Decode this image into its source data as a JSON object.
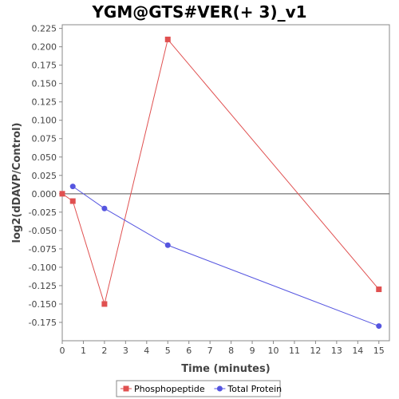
{
  "chart_data": {
    "type": "line",
    "title": "YGM@GTS#VER(+ 3)_v1",
    "xlabel": "Time (minutes)",
    "ylabel": "log2(dDAVP/Control)",
    "xlim": [
      0,
      15.5
    ],
    "ylim": [
      -0.2,
      0.23
    ],
    "x_ticks": [
      0,
      1,
      2,
      3,
      4,
      5,
      6,
      7,
      8,
      9,
      10,
      11,
      12,
      13,
      14,
      15
    ],
    "y_ticks": [
      -0.175,
      -0.15,
      -0.125,
      -0.1,
      -0.075,
      -0.05,
      -0.025,
      0.0,
      0.025,
      0.05,
      0.075,
      0.1,
      0.125,
      0.15,
      0.175,
      0.2,
      0.225
    ],
    "zero_line": true,
    "grid": false,
    "legend_position": "bottom",
    "series": [
      {
        "name": "Phosphopeptide",
        "color": "#e05050",
        "marker": "square",
        "points": [
          [
            0,
            0.0
          ],
          [
            0.5,
            -0.01
          ],
          [
            2,
            -0.15
          ],
          [
            5,
            0.21
          ],
          [
            15,
            -0.13
          ]
        ]
      },
      {
        "name": "Total Protein",
        "color": "#5555e0",
        "marker": "circle",
        "points": [
          [
            0.5,
            0.01
          ],
          [
            2,
            -0.02
          ],
          [
            5,
            -0.07
          ],
          [
            15,
            -0.18
          ]
        ]
      }
    ]
  }
}
